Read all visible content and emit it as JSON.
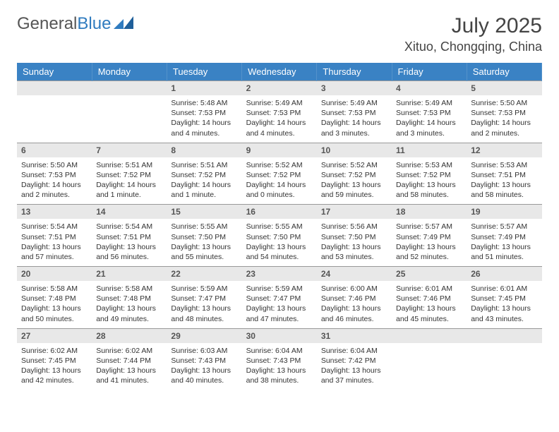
{
  "logo": {
    "text1": "General",
    "text2": "Blue"
  },
  "title": "July 2025",
  "location": "Xituo, Chongqing, China",
  "colors": {
    "header_bg": "#3a82c4",
    "header_text": "#ffffff",
    "daynum_bg": "#e8e8e8",
    "daynum_text": "#555555",
    "body_text": "#333333",
    "border": "#999999",
    "logo_gray": "#555555",
    "logo_blue": "#2f7bbf",
    "page_bg": "#ffffff"
  },
  "typography": {
    "title_fontsize": 30,
    "location_fontsize": 18,
    "dayheader_fontsize": 13,
    "daynum_fontsize": 12,
    "body_fontsize": 10.5
  },
  "day_headers": [
    "Sunday",
    "Monday",
    "Tuesday",
    "Wednesday",
    "Thursday",
    "Friday",
    "Saturday"
  ],
  "weeks": [
    [
      null,
      null,
      {
        "n": "1",
        "sunrise": "5:48 AM",
        "sunset": "7:53 PM",
        "daylight": "14 hours and 4 minutes."
      },
      {
        "n": "2",
        "sunrise": "5:49 AM",
        "sunset": "7:53 PM",
        "daylight": "14 hours and 4 minutes."
      },
      {
        "n": "3",
        "sunrise": "5:49 AM",
        "sunset": "7:53 PM",
        "daylight": "14 hours and 3 minutes."
      },
      {
        "n": "4",
        "sunrise": "5:49 AM",
        "sunset": "7:53 PM",
        "daylight": "14 hours and 3 minutes."
      },
      {
        "n": "5",
        "sunrise": "5:50 AM",
        "sunset": "7:53 PM",
        "daylight": "14 hours and 2 minutes."
      }
    ],
    [
      {
        "n": "6",
        "sunrise": "5:50 AM",
        "sunset": "7:53 PM",
        "daylight": "14 hours and 2 minutes."
      },
      {
        "n": "7",
        "sunrise": "5:51 AM",
        "sunset": "7:52 PM",
        "daylight": "14 hours and 1 minute."
      },
      {
        "n": "8",
        "sunrise": "5:51 AM",
        "sunset": "7:52 PM",
        "daylight": "14 hours and 1 minute."
      },
      {
        "n": "9",
        "sunrise": "5:52 AM",
        "sunset": "7:52 PM",
        "daylight": "14 hours and 0 minutes."
      },
      {
        "n": "10",
        "sunrise": "5:52 AM",
        "sunset": "7:52 PM",
        "daylight": "13 hours and 59 minutes."
      },
      {
        "n": "11",
        "sunrise": "5:53 AM",
        "sunset": "7:52 PM",
        "daylight": "13 hours and 58 minutes."
      },
      {
        "n": "12",
        "sunrise": "5:53 AM",
        "sunset": "7:51 PM",
        "daylight": "13 hours and 58 minutes."
      }
    ],
    [
      {
        "n": "13",
        "sunrise": "5:54 AM",
        "sunset": "7:51 PM",
        "daylight": "13 hours and 57 minutes."
      },
      {
        "n": "14",
        "sunrise": "5:54 AM",
        "sunset": "7:51 PM",
        "daylight": "13 hours and 56 minutes."
      },
      {
        "n": "15",
        "sunrise": "5:55 AM",
        "sunset": "7:50 PM",
        "daylight": "13 hours and 55 minutes."
      },
      {
        "n": "16",
        "sunrise": "5:55 AM",
        "sunset": "7:50 PM",
        "daylight": "13 hours and 54 minutes."
      },
      {
        "n": "17",
        "sunrise": "5:56 AM",
        "sunset": "7:50 PM",
        "daylight": "13 hours and 53 minutes."
      },
      {
        "n": "18",
        "sunrise": "5:57 AM",
        "sunset": "7:49 PM",
        "daylight": "13 hours and 52 minutes."
      },
      {
        "n": "19",
        "sunrise": "5:57 AM",
        "sunset": "7:49 PM",
        "daylight": "13 hours and 51 minutes."
      }
    ],
    [
      {
        "n": "20",
        "sunrise": "5:58 AM",
        "sunset": "7:48 PM",
        "daylight": "13 hours and 50 minutes."
      },
      {
        "n": "21",
        "sunrise": "5:58 AM",
        "sunset": "7:48 PM",
        "daylight": "13 hours and 49 minutes."
      },
      {
        "n": "22",
        "sunrise": "5:59 AM",
        "sunset": "7:47 PM",
        "daylight": "13 hours and 48 minutes."
      },
      {
        "n": "23",
        "sunrise": "5:59 AM",
        "sunset": "7:47 PM",
        "daylight": "13 hours and 47 minutes."
      },
      {
        "n": "24",
        "sunrise": "6:00 AM",
        "sunset": "7:46 PM",
        "daylight": "13 hours and 46 minutes."
      },
      {
        "n": "25",
        "sunrise": "6:01 AM",
        "sunset": "7:46 PM",
        "daylight": "13 hours and 45 minutes."
      },
      {
        "n": "26",
        "sunrise": "6:01 AM",
        "sunset": "7:45 PM",
        "daylight": "13 hours and 43 minutes."
      }
    ],
    [
      {
        "n": "27",
        "sunrise": "6:02 AM",
        "sunset": "7:45 PM",
        "daylight": "13 hours and 42 minutes."
      },
      {
        "n": "28",
        "sunrise": "6:02 AM",
        "sunset": "7:44 PM",
        "daylight": "13 hours and 41 minutes."
      },
      {
        "n": "29",
        "sunrise": "6:03 AM",
        "sunset": "7:43 PM",
        "daylight": "13 hours and 40 minutes."
      },
      {
        "n": "30",
        "sunrise": "6:04 AM",
        "sunset": "7:43 PM",
        "daylight": "13 hours and 38 minutes."
      },
      {
        "n": "31",
        "sunrise": "6:04 AM",
        "sunset": "7:42 PM",
        "daylight": "13 hours and 37 minutes."
      },
      null,
      null
    ]
  ],
  "labels": {
    "sunrise": "Sunrise:",
    "sunset": "Sunset:",
    "daylight": "Daylight:"
  }
}
